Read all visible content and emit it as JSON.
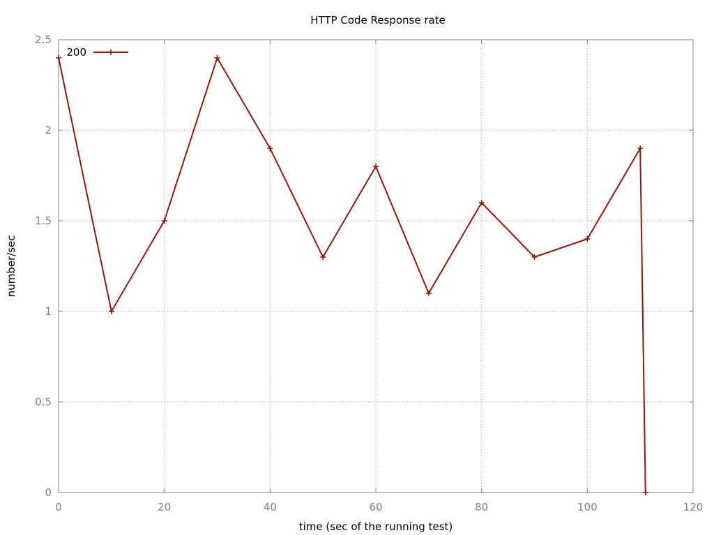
{
  "chart_data": {
    "type": "line",
    "title": "HTTP Code Response rate",
    "xlabel": "time (sec of the running test)",
    "ylabel": "number/sec",
    "xlim": [
      0,
      120
    ],
    "ylim": [
      0,
      2.5
    ],
    "x_ticks": [
      "0",
      "20",
      "40",
      "60",
      "80",
      "100",
      "120"
    ],
    "y_ticks": [
      "0",
      "0.5",
      "1",
      "1.5",
      "2",
      "2.5"
    ],
    "grid": true,
    "legend_position": "top-left",
    "series": [
      {
        "name": "200",
        "color": "#8b1a0e",
        "marker": "plus",
        "x": [
          0,
          10,
          20,
          30,
          40,
          50,
          60,
          70,
          80,
          90,
          100,
          110,
          111
        ],
        "y": [
          2.4,
          1.0,
          1.5,
          2.4,
          1.9,
          1.3,
          1.8,
          1.1,
          1.6,
          1.3,
          1.4,
          1.9,
          0
        ]
      }
    ]
  }
}
